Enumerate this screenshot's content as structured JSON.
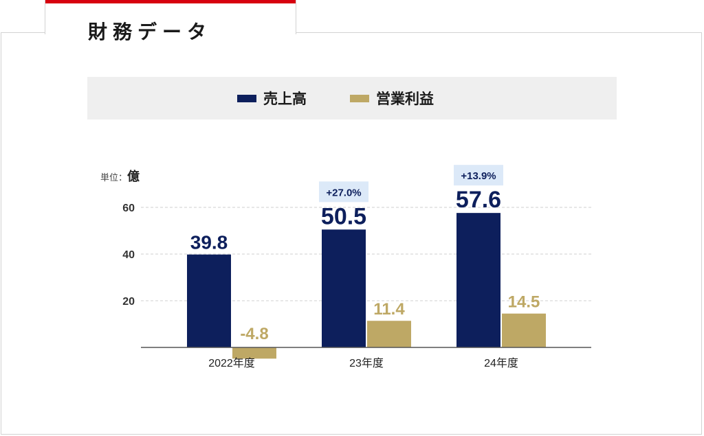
{
  "header": {
    "title": "財務データ"
  },
  "legend": {
    "items": [
      {
        "label": "売上高",
        "color": "#0d1f5c"
      },
      {
        "label": "営業利益",
        "color": "#bea865"
      }
    ]
  },
  "unit": {
    "prefix": "単位：",
    "value": "億"
  },
  "colors": {
    "accent": "#d7000f",
    "revenue": "#0d1f5c",
    "profit": "#bea865",
    "badge_bg": "#dce9f8"
  },
  "chart_data": {
    "type": "bar",
    "categories": [
      "2022年度",
      "23年度",
      "24年度"
    ],
    "series": [
      {
        "name": "売上高",
        "values": [
          39.8,
          50.5,
          57.6
        ],
        "labels": [
          "39.8",
          "50.5",
          "57.6"
        ]
      },
      {
        "name": "営業利益",
        "values": [
          -4.8,
          11.4,
          14.5
        ],
        "labels": [
          "-4.8",
          "11.4",
          "14.5"
        ]
      }
    ],
    "growth_labels": [
      "",
      "+27.0%",
      "+13.9%"
    ],
    "yticks": [
      20,
      40,
      60
    ],
    "ylim": [
      -4.8,
      66
    ],
    "grid": true
  }
}
